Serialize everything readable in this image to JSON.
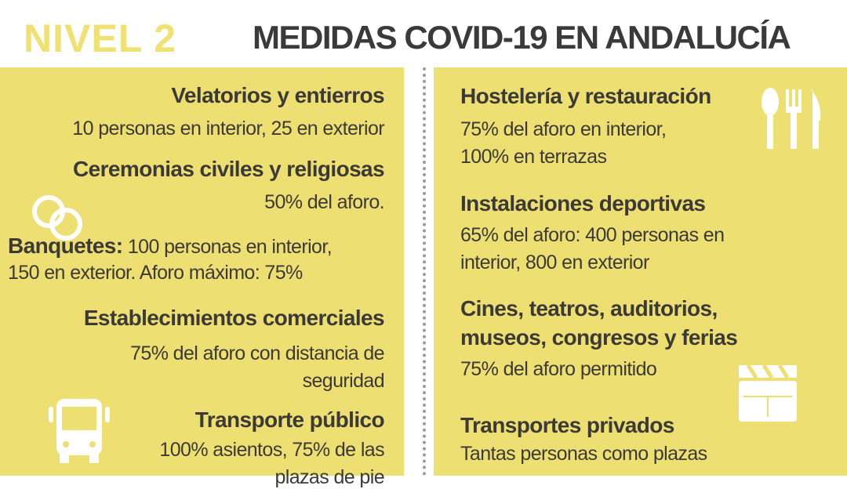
{
  "header": {
    "level": "NIVEL 2",
    "title": "MEDIDAS COVID-19 EN ANDALUCÍA"
  },
  "left": {
    "velatorios": {
      "title": "Velatorios y entierros",
      "text": "10 personas en interior, 25 en exterior"
    },
    "ceremonias": {
      "title": "Ceremonias civiles y religiosas",
      "text": "50% del aforo."
    },
    "banquetes": {
      "title": "Banquetes:",
      "line1": " 100 personas en interior,",
      "line2": "150 en exterior. Aforo máximo: 75%"
    },
    "comercio": {
      "title": "Establecimientos comerciales",
      "line1": "75% del aforo con distancia de",
      "line2": "seguridad"
    },
    "transporte": {
      "title": "Transporte público",
      "line1": "100% asientos, 75% de las",
      "line2": "plazas de pie"
    }
  },
  "right": {
    "hosteleria": {
      "title": "Hostelería y restauración",
      "line1": "75% del aforo en interior,",
      "line2": "100% en terrazas"
    },
    "deportivas": {
      "title": "Instalaciones deportivas",
      "line1": "65% del aforo: 400 personas en",
      "line2": "interior, 800 en exterior"
    },
    "cines": {
      "title1": "Cines, teatros, auditorios,",
      "title2": "museos, congresos y ferias",
      "text": "75% del aforo permitido"
    },
    "privados": {
      "title": "Transportes privados",
      "text": "Tantas personas como plazas"
    }
  },
  "colors": {
    "yellow": "#eedf72",
    "text": "#3b3a36"
  },
  "icons": [
    "rings-icon",
    "bus-icon",
    "cutlery-icon",
    "clapperboard-icon"
  ]
}
